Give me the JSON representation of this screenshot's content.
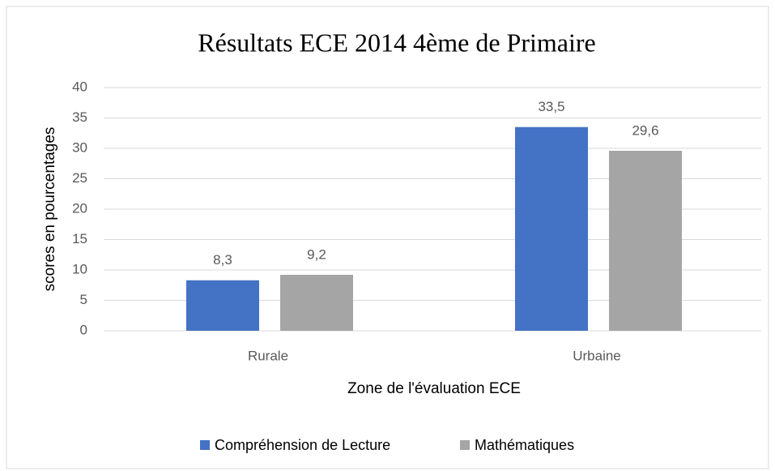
{
  "chart_data": {
    "type": "bar",
    "title": "Résultats ECE 2014 4ème de Primaire",
    "x_label": "Zone de l'évaluation ECE",
    "y_label": "scores en pourcentages",
    "categories": [
      "Rurale",
      "Urbaine"
    ],
    "series": [
      {
        "name": "Compréhension de Lecture",
        "color": "#4472c4",
        "values": [
          8.3,
          33.5
        ],
        "value_labels": [
          "8,3",
          "33,5"
        ]
      },
      {
        "name": "Mathématiques",
        "color": "#a5a5a5",
        "values": [
          9.2,
          29.6
        ],
        "value_labels": [
          "9,2",
          "29,6"
        ]
      }
    ],
    "ylim": [
      0,
      40
    ],
    "yticks": [
      0,
      5,
      10,
      15,
      20,
      25,
      30,
      35,
      40
    ],
    "grid": true,
    "legend": "bottom"
  }
}
